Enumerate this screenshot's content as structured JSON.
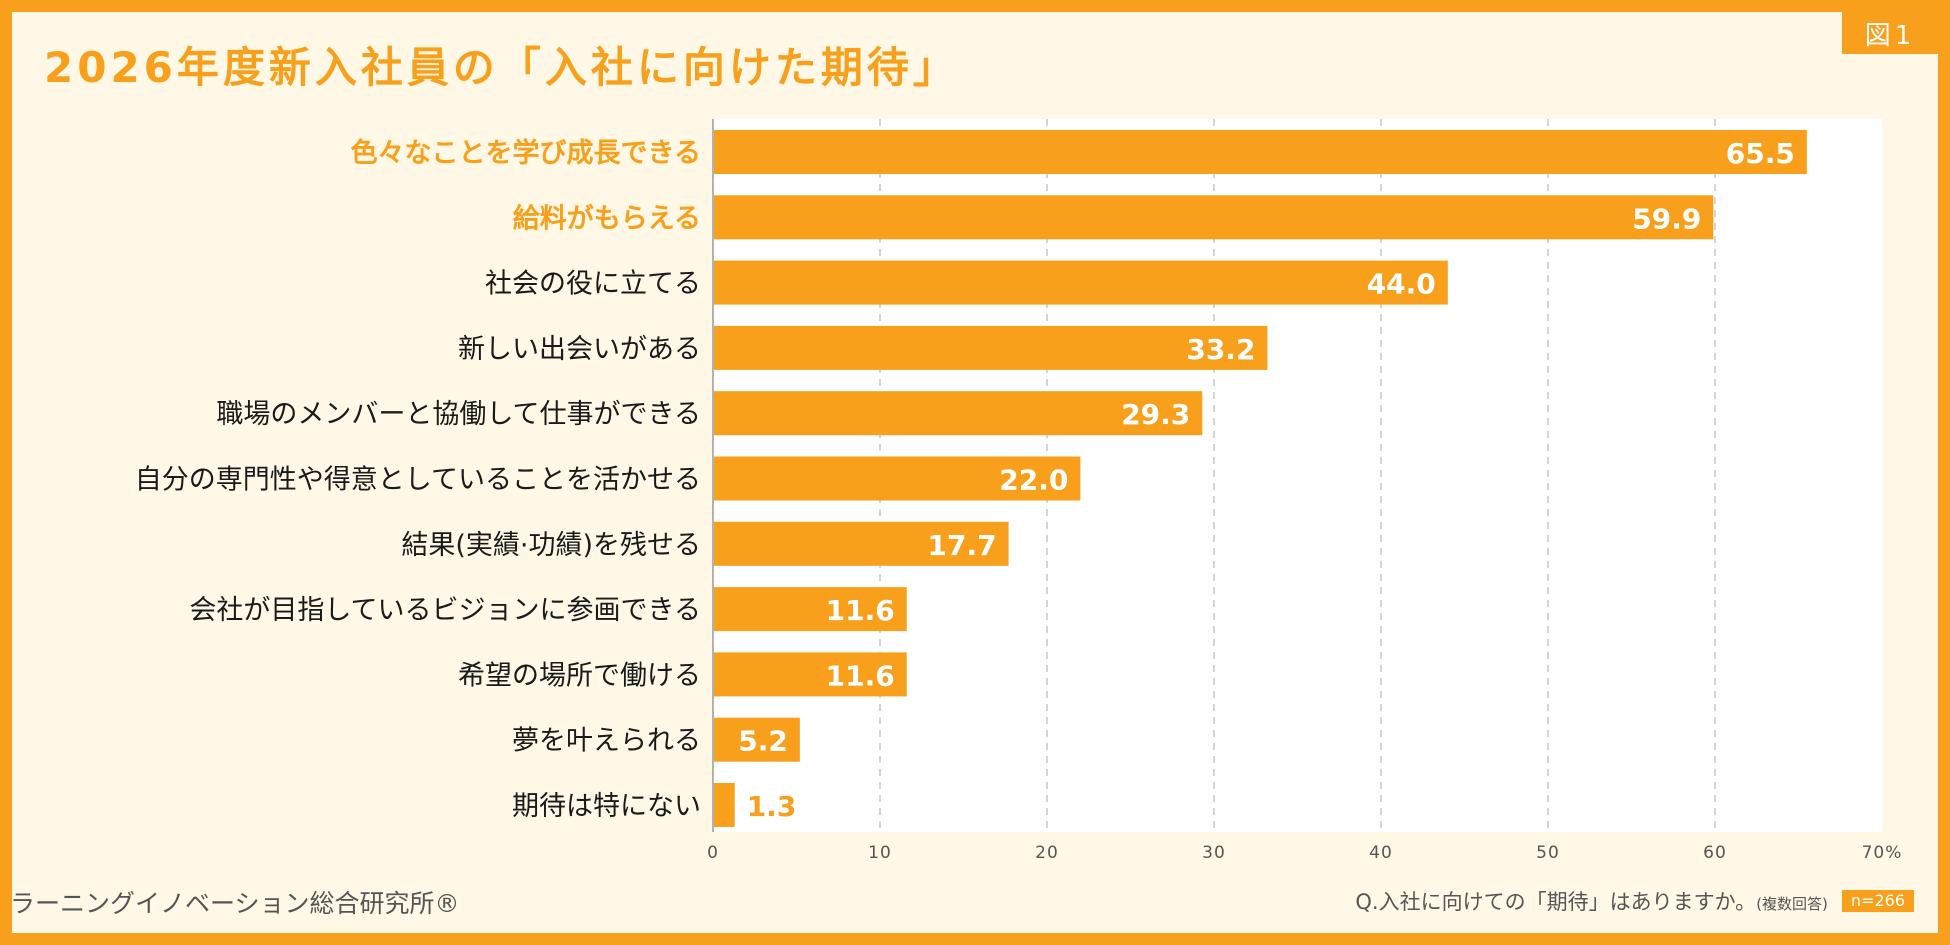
{
  "badge": "図1",
  "footer": {
    "org": "ラーニングイノベーション総合研究所®",
    "question": "Q.入社に向けての「期待」はありますか。",
    "question_note": "(複数回答)",
    "n": "n=266"
  },
  "colors": {
    "accent": "#f8a01c",
    "background": "#fff8e6",
    "plot_area": "#ffffff",
    "label": "#1a1a1a",
    "grid": "#bdbdbd"
  },
  "chart_data": {
    "type": "bar",
    "orientation": "horizontal",
    "title": "2026年度新入社員の「入社に向けた期待」",
    "xlabel": "",
    "ylabel": "",
    "unit": "%",
    "xlim": [
      0,
      70
    ],
    "ticks": [
      "0",
      "10",
      "20",
      "30",
      "40",
      "50",
      "60",
      "70%"
    ],
    "grid": "vertical dashed",
    "categories": [
      "色々なことを学び成長できる",
      "給料がもらえる",
      "社会の役に立てる",
      "新しい出会いがある",
      "職場のメンバーと協働して仕事ができる",
      "自分の専門性や得意としていることを活かせる",
      "結果(実績·功績)を残せる",
      "会社が目指しているビジョンに参画できる",
      "希望の場所で働ける",
      "夢を叶えられる",
      "期待は特にない"
    ],
    "highlighted": [
      true,
      true,
      false,
      false,
      false,
      false,
      false,
      false,
      false,
      false,
      false
    ],
    "values": [
      65.5,
      59.9,
      44.0,
      33.2,
      29.3,
      22.0,
      17.7,
      11.6,
      11.6,
      5.2,
      1.3
    ],
    "value_labels": [
      "65.5",
      "59.9",
      "44.0",
      "33.2",
      "29.3",
      "22.0",
      "17.7",
      "11.6",
      "11.6",
      "5.2",
      "1.3"
    ]
  }
}
